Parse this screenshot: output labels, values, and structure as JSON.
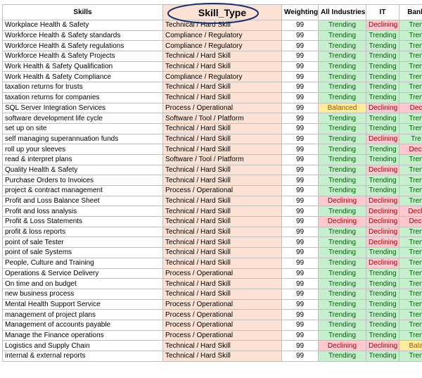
{
  "table": {
    "headers": [
      "Skills",
      "Skill_Type",
      "Weighting",
      "All Industries",
      "IT",
      "Bank"
    ],
    "rows": [
      [
        "Workplace Health & Safety",
        "Technical / Hard Skill",
        99,
        "Trending",
        "Declining",
        "Tren"
      ],
      [
        "Workforce Health & Safety standards",
        "Compliance / Regulatory",
        99,
        "Trending",
        "Trending",
        "Tren"
      ],
      [
        "Workforce Health & Safety regulations",
        "Compliance / Regulatory",
        99,
        "Trending",
        "Trending",
        "Tren"
      ],
      [
        "Workforce Health & Safety Projects",
        "Technical / Hard Skill",
        99,
        "Trending",
        "Trending",
        "Tren"
      ],
      [
        "Work Health & Safety Qualification",
        "Technical / Hard Skill",
        99,
        "Trending",
        "Trending",
        "Tren"
      ],
      [
        "Work Health & Safety Compliance",
        "Compliance / Regulatory",
        99,
        "Trending",
        "Trending",
        "Tren"
      ],
      [
        "taxation returns for trusts",
        "Technical / Hard Skill",
        99,
        "Trending",
        "Trending",
        "Tren"
      ],
      [
        "taxation returns for companies",
        "Technical / Hard Skill",
        99,
        "Trending",
        "Trending",
        "Tren"
      ],
      [
        "SQL Server Integration Services",
        "Process / Operational",
        99,
        "Balanced",
        "Declining",
        "Dec"
      ],
      [
        "software development life cycle",
        "Software / Tool / Platform",
        99,
        "Trending",
        "Trending",
        "Tren"
      ],
      [
        "set up on site",
        "Technical / Hard Skill",
        99,
        "Trending",
        "Trending",
        "Tren"
      ],
      [
        "self managing superannuation funds",
        "Technical / Hard Skill",
        99,
        "Trending",
        "Declining",
        "Tre"
      ],
      [
        "roll up your sleeves",
        "Technical / Hard Skill",
        99,
        "Trending",
        "Trending",
        "Decl"
      ],
      [
        "read & interpret plans",
        "Software / Tool / Platform",
        99,
        "Trending",
        "Trending",
        "Tren"
      ],
      [
        "Quality Health & Safety",
        "Technical / Hard Skill",
        99,
        "Trending",
        "Declining",
        "Tren"
      ],
      [
        "Purchase Orders to Invoices",
        "Technical / Hard Skill",
        99,
        "Trending",
        "Trending",
        "Tren"
      ],
      [
        "project & contract management",
        "Process / Operational",
        99,
        "Trending",
        "Trending",
        "Tren"
      ],
      [
        "Profit and Loss Balance Sheet",
        "Technical / Hard Skill",
        99,
        "Declining",
        "Declining",
        "Tren"
      ],
      [
        "Profit and loss analysis",
        "Technical / Hard Skill",
        99,
        "Trending",
        "Declining",
        "Decli"
      ],
      [
        "Profit & Loss Statements",
        "Technical / Hard Skill",
        99,
        "Declining",
        "Declining",
        "Decl"
      ],
      [
        "profit & loss reports",
        "Technical / Hard Skill",
        99,
        "Trending",
        "Declining",
        "Tren"
      ],
      [
        "point of sale Tester",
        "Technical / Hard Skill",
        99,
        "Trending",
        "Declining",
        "Tren"
      ],
      [
        "point of sale Systems",
        "Technical / Hard Skill",
        99,
        "Trending",
        "Trending",
        "Tren"
      ],
      [
        "People, Culture and Training",
        "Technical / Hard Skill",
        99,
        "Trending",
        "Declining",
        "Tren"
      ],
      [
        "Operations & Service Delivery",
        "Process / Operational",
        99,
        "Trending",
        "Trending",
        "Tren"
      ],
      [
        "On time and on budget",
        "Technical / Hard Skill",
        99,
        "Trending",
        "Trending",
        "Tren"
      ],
      [
        "new business process",
        "Technical / Hard Skill",
        99,
        "Trending",
        "Trending",
        "Tren"
      ],
      [
        "Mental Health Support Service",
        "Process / Operational",
        99,
        "Trending",
        "Trending",
        "Tren"
      ],
      [
        "management of project plans",
        "Process / Operational",
        99,
        "Trending",
        "Trending",
        "Tren"
      ],
      [
        "Management of accounts payable",
        "Process / Operational",
        99,
        "Trending",
        "Trending",
        "Tren"
      ],
      [
        "Manage the Finance operations",
        "Process / Operational",
        99,
        "Trending",
        "Trending",
        "Tren"
      ],
      [
        "Logistics and Supply Chain",
        "Technical / Hard Skill",
        99,
        "Declining",
        "Declining",
        "Bala"
      ],
      [
        "internal & external reports",
        "Technical / Hard Skill",
        99,
        "Trending",
        "Trending",
        "Tren"
      ]
    ]
  }
}
